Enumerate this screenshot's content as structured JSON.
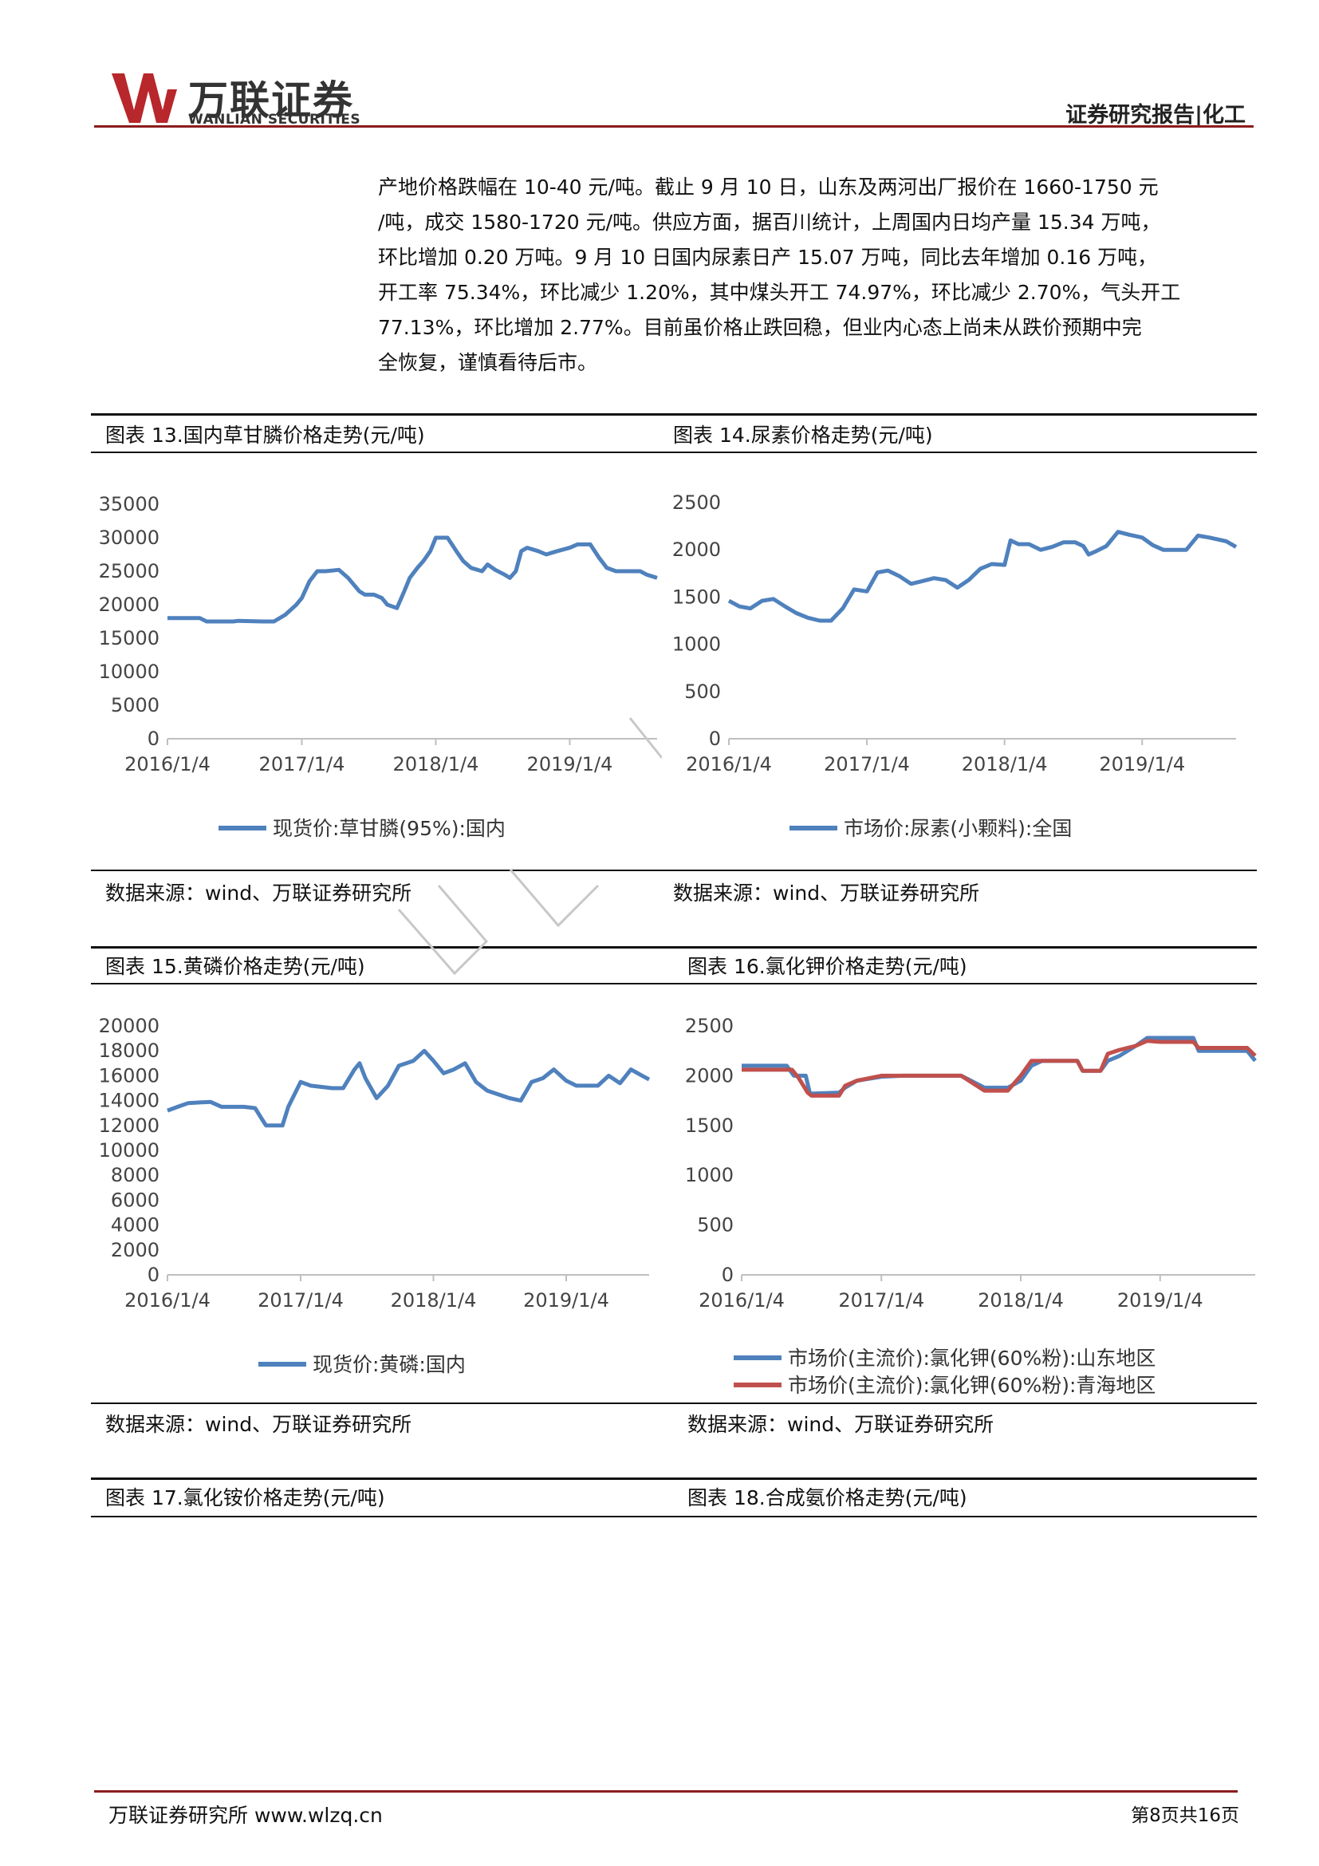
{
  "header": {
    "logo_text": "万联证券",
    "logo_sub": "WANLIAN SECURITIES",
    "report_type": "证券研究报告|化工"
  },
  "paragraph": [
    "产地价格跌幅在 10-40 元/吨。截止 9 月 10 日，山东及两河出厂报价在 1660-1750 元",
    "/吨，成交 1580-1720 元/吨。供应方面，据百川统计，上周国内日均产量 15.34 万吨，",
    "环比增加 0.20 万吨。9 月 10 日国内尿素日产 15.07 万吨，同比去年增加 0.16 万吨，",
    "开工率 75.34%，环比减少 1.20%，其中煤头开工 74.97%，环比减少 2.70%，气头开工",
    "77.13%，环比增加 2.77%。目前虽价格止跌回稳，但业内心态上尚未从跌价预期中完",
    "全恢复，谨慎看待后市。"
  ],
  "charts": [
    {
      "caption": "图表 13.国内草甘膦价格走势(元/吨)",
      "source": "数据来源：wind、万联证券研究所"
    },
    {
      "caption": "图表 14.尿素价格走势(元/吨)",
      "source": "数据来源：wind、万联证券研究所"
    },
    {
      "caption": "图表 15.黄磷价格走势(元/吨)",
      "source": "数据来源：wind、万联证券研究所"
    },
    {
      "caption": "图表 16.氯化钾价格走势(元/吨)",
      "source": "数据来源：wind、万联证券研究所"
    },
    {
      "caption": "图表 17.氯化铵价格走势(元/吨)"
    },
    {
      "caption": "图表 18.合成氨价格走势(元/吨)"
    }
  ],
  "chart_data": [
    {
      "type": "line",
      "ylim": [
        0,
        35000
      ],
      "yticks": [
        0,
        5000,
        10000,
        15000,
        20000,
        25000,
        30000,
        35000
      ],
      "xlim": [
        "2016-01-04",
        "2019-08-30"
      ],
      "xticks": [
        "2016/1/4",
        "2017/1/4",
        "2018/1/4",
        "2019/1/4"
      ],
      "legend_position": "bottom",
      "series": [
        {
          "name": "现货价:草甘膦(95%):国内",
          "color": "#4f81bd",
          "points": [
            [
              "2016-01-04",
              18000
            ],
            [
              "2016-04-01",
              18000
            ],
            [
              "2016-04-20",
              17500
            ],
            [
              "2016-07-01",
              17500
            ],
            [
              "2016-07-15",
              17600
            ],
            [
              "2016-09-20",
              17500
            ],
            [
              "2016-10-20",
              17500
            ],
            [
              "2016-11-20",
              18500
            ],
            [
              "2016-12-20",
              20000
            ],
            [
              "2017-01-04",
              21000
            ],
            [
              "2017-01-25",
              23500
            ],
            [
              "2017-02-15",
              25000
            ],
            [
              "2017-03-10",
              25000
            ],
            [
              "2017-04-15",
              25200
            ],
            [
              "2017-05-10",
              24000
            ],
            [
              "2017-06-10",
              22000
            ],
            [
              "2017-06-25",
              21500
            ],
            [
              "2017-07-20",
              21500
            ],
            [
              "2017-08-10",
              21000
            ],
            [
              "2017-08-25",
              20000
            ],
            [
              "2017-09-20",
              19500
            ],
            [
              "2017-10-10",
              22000
            ],
            [
              "2017-10-25",
              24000
            ],
            [
              "2017-11-15",
              25500
            ],
            [
              "2017-12-01",
              26500
            ],
            [
              "2017-12-20",
              28000
            ],
            [
              "2018-01-04",
              30000
            ],
            [
              "2018-02-05",
              30000
            ],
            [
              "2018-03-01",
              28000
            ],
            [
              "2018-03-20",
              26500
            ],
            [
              "2018-04-10",
              25500
            ],
            [
              "2018-05-10",
              25000
            ],
            [
              "2018-05-25",
              26000
            ],
            [
              "2018-06-15",
              25200
            ],
            [
              "2018-07-10",
              24500
            ],
            [
              "2018-07-25",
              24000
            ],
            [
              "2018-08-10",
              25000
            ],
            [
              "2018-08-25",
              28000
            ],
            [
              "2018-09-10",
              28500
            ],
            [
              "2018-10-10",
              28000
            ],
            [
              "2018-11-01",
              27500
            ],
            [
              "2018-12-01",
              28000
            ],
            [
              "2019-01-04",
              28500
            ],
            [
              "2019-01-25",
              29000
            ],
            [
              "2019-03-01",
              29000
            ],
            [
              "2019-03-25",
              27000
            ],
            [
              "2019-04-15",
              25500
            ],
            [
              "2019-05-10",
              25000
            ],
            [
              "2019-06-01",
              25000
            ],
            [
              "2019-07-15",
              25000
            ],
            [
              "2019-08-01",
              24500
            ],
            [
              "2019-08-30",
              24000
            ]
          ]
        }
      ]
    },
    {
      "type": "line",
      "ylim": [
        0,
        2500
      ],
      "yticks": [
        0,
        500,
        1000,
        1500,
        2000,
        2500
      ],
      "xlim": [
        "2016-01-04",
        "2019-09-10"
      ],
      "xticks": [
        "2016/1/4",
        "2017/1/4",
        "2018/1/4",
        "2019/1/4"
      ],
      "legend_position": "bottom",
      "series": [
        {
          "name": "市场价:尿素(小颗料):全国",
          "color": "#4f81bd",
          "points": [
            [
              "2016-01-04",
              1460
            ],
            [
              "2016-02-01",
              1400
            ],
            [
              "2016-03-01",
              1380
            ],
            [
              "2016-04-01",
              1460
            ],
            [
              "2016-05-01",
              1480
            ],
            [
              "2016-06-01",
              1400
            ],
            [
              "2016-07-01",
              1330
            ],
            [
              "2016-08-01",
              1280
            ],
            [
              "2016-09-01",
              1250
            ],
            [
              "2016-10-01",
              1250
            ],
            [
              "2016-11-01",
              1380
            ],
            [
              "2016-12-01",
              1580
            ],
            [
              "2017-01-04",
              1560
            ],
            [
              "2017-02-01",
              1760
            ],
            [
              "2017-03-01",
              1780
            ],
            [
              "2017-04-01",
              1720
            ],
            [
              "2017-05-01",
              1640
            ],
            [
              "2017-06-01",
              1670
            ],
            [
              "2017-07-01",
              1700
            ],
            [
              "2017-08-01",
              1680
            ],
            [
              "2017-09-01",
              1600
            ],
            [
              "2017-10-01",
              1680
            ],
            [
              "2017-11-01",
              1800
            ],
            [
              "2017-12-01",
              1850
            ],
            [
              "2018-01-04",
              1840
            ],
            [
              "2018-01-20",
              2100
            ],
            [
              "2018-02-10",
              2060
            ],
            [
              "2018-03-10",
              2060
            ],
            [
              "2018-04-10",
              2000
            ],
            [
              "2018-05-10",
              2030
            ],
            [
              "2018-06-10",
              2080
            ],
            [
              "2018-07-10",
              2080
            ],
            [
              "2018-08-01",
              2040
            ],
            [
              "2018-08-15",
              1950
            ],
            [
              "2018-09-01",
              1980
            ],
            [
              "2018-10-01",
              2040
            ],
            [
              "2018-11-01",
              2190
            ],
            [
              "2018-12-01",
              2160
            ],
            [
              "2019-01-04",
              2130
            ],
            [
              "2019-02-01",
              2050
            ],
            [
              "2019-03-01",
              2000
            ],
            [
              "2019-04-01",
              2000
            ],
            [
              "2019-05-01",
              2000
            ],
            [
              "2019-06-01",
              2150
            ],
            [
              "2019-07-01",
              2130
            ],
            [
              "2019-08-15",
              2090
            ],
            [
              "2019-09-10",
              2030
            ]
          ]
        }
      ]
    },
    {
      "type": "line",
      "ylim": [
        0,
        20000
      ],
      "yticks": [
        0,
        2000,
        4000,
        6000,
        8000,
        10000,
        12000,
        14000,
        16000,
        18000,
        20000
      ],
      "xlim": [
        "2016-01-04",
        "2019-08-20"
      ],
      "xticks": [
        "2016/1/4",
        "2017/1/4",
        "2018/1/4",
        "2019/1/4"
      ],
      "legend_position": "bottom",
      "series": [
        {
          "name": "现货价:黄磷:国内",
          "color": "#4f81bd",
          "points": [
            [
              "2016-01-04",
              13200
            ],
            [
              "2016-02-01",
              13500
            ],
            [
              "2016-03-01",
              13800
            ],
            [
              "2016-05-01",
              13900
            ],
            [
              "2016-06-01",
              13500
            ],
            [
              "2016-08-01",
              13500
            ],
            [
              "2016-09-01",
              13400
            ],
            [
              "2016-09-20",
              12500
            ],
            [
              "2016-10-01",
              12000
            ],
            [
              "2016-11-15",
              12000
            ],
            [
              "2016-12-01",
              13500
            ],
            [
              "2017-01-04",
              15500
            ],
            [
              "2017-02-01",
              15200
            ],
            [
              "2017-04-01",
              15000
            ],
            [
              "2017-05-01",
              15000
            ],
            [
              "2017-06-01",
              16500
            ],
            [
              "2017-06-15",
              17000
            ],
            [
              "2017-07-01",
              15800
            ],
            [
              "2017-08-01",
              14200
            ],
            [
              "2017-09-01",
              15200
            ],
            [
              "2017-10-01",
              16800
            ],
            [
              "2017-11-10",
              17200
            ],
            [
              "2017-12-10",
              18000
            ],
            [
              "2018-01-04",
              17200
            ],
            [
              "2018-02-01",
              16200
            ],
            [
              "2018-03-01",
              16500
            ],
            [
              "2018-04-01",
              17000
            ],
            [
              "2018-05-01",
              15500
            ],
            [
              "2018-06-01",
              14800
            ],
            [
              "2018-07-01",
              14500
            ],
            [
              "2018-08-01",
              14200
            ],
            [
              "2018-09-01",
              14000
            ],
            [
              "2018-10-01",
              15500
            ],
            [
              "2018-11-01",
              15800
            ],
            [
              "2018-12-01",
              16500
            ],
            [
              "2019-01-04",
              15600
            ],
            [
              "2019-02-01",
              15200
            ],
            [
              "2019-04-01",
              15200
            ],
            [
              "2019-05-01",
              16000
            ],
            [
              "2019-06-01",
              15400
            ],
            [
              "2019-07-01",
              16500
            ],
            [
              "2019-08-01",
              16000
            ],
            [
              "2019-08-20",
              15700
            ]
          ]
        }
      ]
    },
    {
      "type": "line",
      "ylim": [
        0,
        2500
      ],
      "yticks": [
        0,
        500,
        1000,
        1500,
        2000,
        2500
      ],
      "xlim": [
        "2016-01-04",
        "2019-09-10"
      ],
      "xticks": [
        "2016/1/4",
        "2017/1/4",
        "2018/1/4",
        "2019/1/4"
      ],
      "legend_position": "bottom",
      "series": [
        {
          "name": "市场价(主流价):氯化钾(60%粉):山东地区",
          "color": "#4f81bd",
          "points": [
            [
              "2016-01-04",
              2100
            ],
            [
              "2016-05-01",
              2100
            ],
            [
              "2016-05-20",
              2000
            ],
            [
              "2016-06-20",
              2000
            ],
            [
              "2016-07-01",
              1820
            ],
            [
              "2016-09-15",
              1830
            ],
            [
              "2016-10-01",
              1880
            ],
            [
              "2016-11-01",
              1950
            ],
            [
              "2017-01-04",
              1990
            ],
            [
              "2017-03-01",
              2000
            ],
            [
              "2017-08-01",
              2000
            ],
            [
              "2017-10-01",
              1880
            ],
            [
              "2017-12-01",
              1880
            ],
            [
              "2018-01-04",
              1950
            ],
            [
              "2018-02-01",
              2100
            ],
            [
              "2018-03-01",
              2150
            ],
            [
              "2018-06-01",
              2150
            ],
            [
              "2018-06-15",
              2050
            ],
            [
              "2018-08-01",
              2050
            ],
            [
              "2018-08-20",
              2150
            ],
            [
              "2018-09-20",
              2200
            ],
            [
              "2018-11-01",
              2300
            ],
            [
              "2018-12-01",
              2380
            ],
            [
              "2019-01-04",
              2380
            ],
            [
              "2019-04-01",
              2380
            ],
            [
              "2019-04-15",
              2250
            ],
            [
              "2019-08-20",
              2250
            ],
            [
              "2019-09-10",
              2150
            ]
          ]
        },
        {
          "name": "市场价(主流价):氯化钾(60%粉):青海地区",
          "color": "#c0504d",
          "points": [
            [
              "2016-01-04",
              2060
            ],
            [
              "2016-05-15",
              2060
            ],
            [
              "2016-06-01",
              1980
            ],
            [
              "2016-06-25",
              1830
            ],
            [
              "2016-07-05",
              1800
            ],
            [
              "2016-09-15",
              1800
            ],
            [
              "2016-10-01",
              1900
            ],
            [
              "2016-11-01",
              1950
            ],
            [
              "2017-01-04",
              2000
            ],
            [
              "2017-02-01",
              2000
            ],
            [
              "2017-08-01",
              2000
            ],
            [
              "2017-10-01",
              1850
            ],
            [
              "2017-12-01",
              1850
            ],
            [
              "2018-01-04",
              2000
            ],
            [
              "2018-02-01",
              2150
            ],
            [
              "2018-06-01",
              2150
            ],
            [
              "2018-06-15",
              2050
            ],
            [
              "2018-08-01",
              2050
            ],
            [
              "2018-08-20",
              2220
            ],
            [
              "2018-09-20",
              2260
            ],
            [
              "2018-11-01",
              2300
            ],
            [
              "2018-12-01",
              2350
            ],
            [
              "2019-01-04",
              2340
            ],
            [
              "2019-04-01",
              2340
            ],
            [
              "2019-04-15",
              2280
            ],
            [
              "2019-08-20",
              2280
            ],
            [
              "2019-09-10",
              2200
            ]
          ]
        }
      ]
    }
  ],
  "footer": {
    "left": "万联证券研究所 www.wlzq.cn",
    "right": "第8页共16页"
  }
}
